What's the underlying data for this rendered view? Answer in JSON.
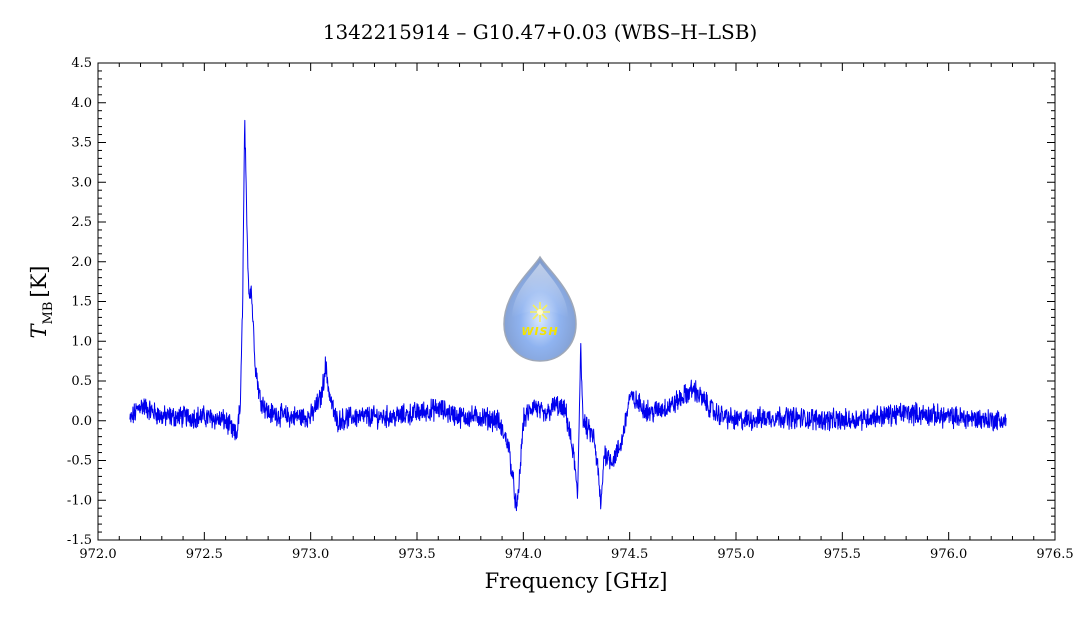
{
  "chart_data": {
    "type": "line",
    "title": "1342215914 – G10.47+0.03 (WBS–H–LSB)",
    "xlabel": "Frequency [GHz]",
    "ylabel_main": "T",
    "ylabel_sub": "MB",
    "ylabel_unit": "[K]",
    "xlim": [
      972.0,
      976.5
    ],
    "ylim": [
      -1.5,
      4.5
    ],
    "x_ticks": [
      "972.0",
      "972.5",
      "973.0",
      "973.5",
      "974.0",
      "974.5",
      "975.0",
      "975.5",
      "976.0",
      "976.5"
    ],
    "y_ticks": [
      "-1.5",
      "-1.0",
      "-0.5",
      "0.0",
      "0.5",
      "1.0",
      "1.5",
      "2.0",
      "2.5",
      "3.0",
      "3.5",
      "4.0",
      "4.5"
    ],
    "grid": false,
    "line_color": "#0000ee",
    "series": [
      {
        "x": [
          972.15,
          972.2,
          972.3,
          972.4,
          972.5,
          972.6,
          972.65,
          972.67,
          972.68,
          972.69,
          972.7,
          972.71,
          972.72,
          972.74,
          972.76,
          972.8,
          972.9,
          973.0,
          973.05,
          973.07,
          973.09,
          973.12,
          973.2,
          973.4,
          973.6,
          973.7,
          973.8,
          973.88,
          973.93,
          973.97,
          973.985,
          974.0,
          974.05,
          974.1,
          974.15,
          974.2,
          974.24,
          974.255,
          974.27,
          974.28,
          974.3,
          974.33,
          974.35,
          974.365,
          974.38,
          974.42,
          974.46,
          974.5,
          974.55,
          974.6,
          974.7,
          974.8,
          974.9,
          975.0,
          975.2,
          975.5,
          975.8,
          976.0,
          976.27
        ],
        "y": [
          0.0,
          0.2,
          0.05,
          0.05,
          0.05,
          0.0,
          -0.2,
          0.2,
          1.5,
          3.8,
          2.4,
          1.6,
          1.7,
          0.7,
          0.3,
          0.1,
          0.05,
          0.05,
          0.3,
          0.7,
          0.3,
          0.0,
          0.05,
          0.05,
          0.15,
          0.05,
          0.05,
          0.0,
          -0.3,
          -1.15,
          -0.6,
          0.0,
          0.2,
          0.05,
          0.2,
          0.1,
          -0.5,
          -1.0,
          1.0,
          0.0,
          -0.1,
          -0.2,
          -0.6,
          -1.1,
          -0.4,
          -0.5,
          -0.3,
          0.3,
          0.2,
          0.1,
          0.2,
          0.4,
          0.1,
          0.0,
          0.05,
          0.0,
          0.1,
          0.05,
          0.0
        ]
      }
    ]
  },
  "logo": {
    "text": "WISH"
  }
}
